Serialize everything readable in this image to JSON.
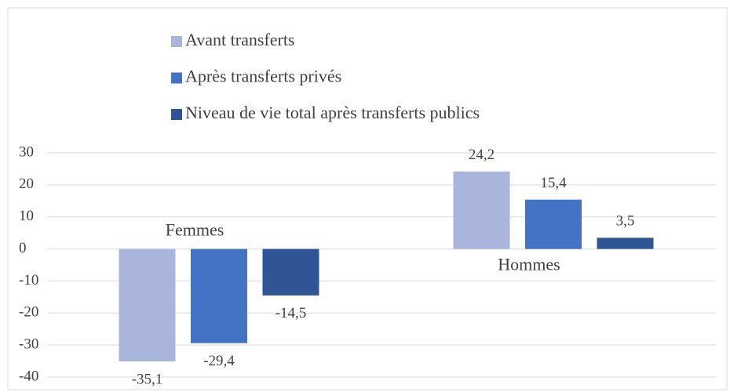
{
  "chart_data": {
    "type": "bar",
    "categories": [
      "Femmes",
      "Hommes"
    ],
    "series": [
      {
        "name": "Avant transferts",
        "color": "#a9b5db",
        "values": [
          -35.1,
          24.2
        ],
        "value_labels": [
          "-35,1",
          "24,2"
        ]
      },
      {
        "name": "Après transferts privés",
        "color": "#4472c4",
        "values": [
          -29.4,
          15.4
        ],
        "value_labels": [
          "-29,4",
          "15,4"
        ]
      },
      {
        "name": "Niveau de vie total après transferts publics",
        "color": "#2f5597",
        "values": [
          -14.5,
          3.5
        ],
        "value_labels": [
          "-14,5",
          "3,5"
        ]
      }
    ],
    "ylim": [
      -40,
      30
    ],
    "yticks": [
      -40,
      -30,
      -20,
      -10,
      0,
      10,
      20,
      30
    ],
    "grid": true,
    "legend": "top"
  }
}
